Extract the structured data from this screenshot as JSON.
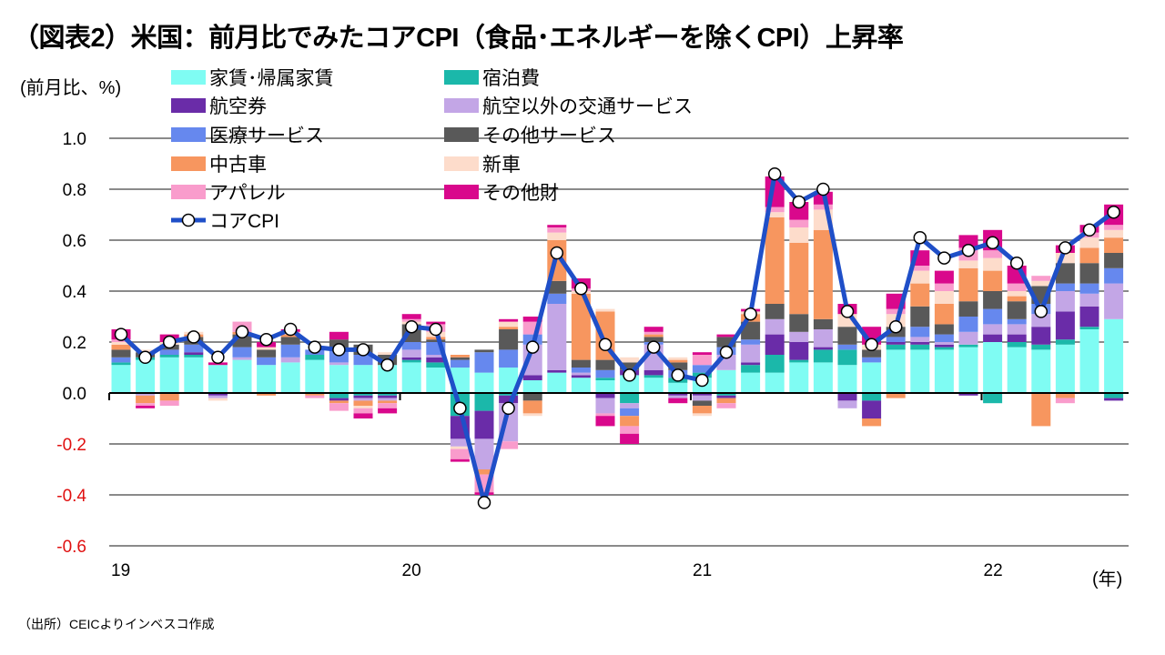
{
  "title": "（図表2）米国：前月比でみたコアCPI（食品･エネルギーを除くCPI）上昇率",
  "source": "（出所）CEICよりインベスコ作成",
  "chart_data": {
    "type": "bar",
    "stacked": true,
    "title": "（図表2）米国：前月比でみたコアCPI（食品･エネルギーを除くCPI）上昇率",
    "ylabel": "(前月比、%)",
    "xlabel": "(年)",
    "ylim": [
      -0.6,
      1.0
    ],
    "yticks": [
      "1.0",
      "0.8",
      "0.6",
      "0.4",
      "0.2",
      "0.0",
      "-0.2",
      "-0.4",
      "-0.6"
    ],
    "ytick_values": [
      1.0,
      0.8,
      0.6,
      0.4,
      0.2,
      0.0,
      -0.2,
      -0.4,
      -0.6
    ],
    "negative_tick_color": "#e01010",
    "grid": true,
    "legend_position": "top-left",
    "xtick_labels": [
      "19",
      "20",
      "21",
      "22"
    ],
    "x_start": "2019-01",
    "x": [
      "2019-01",
      "2019-02",
      "2019-03",
      "2019-04",
      "2019-05",
      "2019-06",
      "2019-07",
      "2019-08",
      "2019-09",
      "2019-10",
      "2019-11",
      "2019-12",
      "2020-01",
      "2020-02",
      "2020-03",
      "2020-04",
      "2020-05",
      "2020-06",
      "2020-07",
      "2020-08",
      "2020-09",
      "2020-10",
      "2020-11",
      "2020-12",
      "2021-01",
      "2021-02",
      "2021-03",
      "2021-04",
      "2021-05",
      "2021-06",
      "2021-07",
      "2021-08",
      "2021-09",
      "2021-10",
      "2021-11",
      "2021-12",
      "2022-01",
      "2022-02",
      "2022-03",
      "2022-04",
      "2022-05",
      "2022-06"
    ],
    "series": [
      {
        "name": "家賃･帰属家賃",
        "color": "#7ffcf3",
        "values": [
          0.11,
          0.13,
          0.14,
          0.14,
          0.11,
          0.13,
          0.11,
          0.12,
          0.13,
          0.11,
          0.11,
          0.11,
          0.12,
          0.1,
          0.1,
          0.08,
          0.1,
          0.05,
          0.08,
          0.06,
          0.05,
          0.07,
          0.06,
          0.04,
          0.06,
          0.09,
          0.08,
          0.08,
          0.12,
          0.12,
          0.11,
          0.12,
          0.17,
          0.17,
          0.17,
          0.18,
          0.2,
          0.18,
          0.17,
          0.19,
          0.25,
          0.29
        ]
      },
      {
        "name": "宿泊費",
        "color": "#1bb8aa",
        "values": [
          0.01,
          0.01,
          0.01,
          0.01,
          0.0,
          0.0,
          0.0,
          0.0,
          0.02,
          -0.02,
          -0.01,
          -0.01,
          0.01,
          0.02,
          -0.09,
          -0.07,
          -0.01,
          0.0,
          0.0,
          0.0,
          0.01,
          -0.04,
          0.01,
          0.02,
          0.02,
          -0.01,
          0.03,
          0.07,
          0.01,
          0.05,
          0.06,
          -0.03,
          0.02,
          0.02,
          0.01,
          0.01,
          -0.04,
          0.02,
          0.02,
          0.02,
          0.01,
          -0.02
        ]
      },
      {
        "name": "航空券",
        "color": "#6a2ca8",
        "values": [
          0.0,
          0.0,
          0.0,
          0.01,
          -0.01,
          0.0,
          0.0,
          0.0,
          0.0,
          -0.01,
          -0.01,
          -0.01,
          0.01,
          0.02,
          -0.09,
          -0.11,
          -0.03,
          0.02,
          0.01,
          0.01,
          -0.02,
          0.02,
          0.02,
          -0.01,
          -0.01,
          -0.01,
          0.01,
          0.08,
          0.07,
          0.01,
          -0.03,
          -0.07,
          0.01,
          0.01,
          0.01,
          -0.01,
          0.03,
          0.03,
          0.07,
          0.11,
          0.08,
          -0.01
        ]
      },
      {
        "name": "航空以外の交通サービス",
        "color": "#c3a6e6",
        "values": [
          0.0,
          -0.01,
          0.0,
          0.0,
          -0.01,
          0.01,
          0.0,
          0.02,
          0.0,
          0.01,
          -0.01,
          -0.01,
          0.03,
          0.01,
          -0.03,
          -0.12,
          -0.15,
          0.12,
          0.26,
          0.01,
          -0.06,
          -0.02,
          0.1,
          -0.01,
          -0.02,
          0.06,
          0.07,
          0.06,
          0.04,
          0.07,
          -0.03,
          0.0,
          0.0,
          0.02,
          0.01,
          0.05,
          0.04,
          0.04,
          0.05,
          0.08,
          0.05,
          0.14
        ]
      },
      {
        "name": "医療サービス",
        "color": "#6688ee",
        "values": [
          0.02,
          0.0,
          0.02,
          0.03,
          0.0,
          0.04,
          0.03,
          0.05,
          0.02,
          0.05,
          0.04,
          0.0,
          0.03,
          0.05,
          0.03,
          0.08,
          0.07,
          0.04,
          0.04,
          0.02,
          0.03,
          -0.03,
          0.01,
          0.03,
          0.03,
          0.03,
          0.02,
          0.0,
          0.0,
          0.0,
          0.02,
          0.02,
          0.02,
          0.04,
          0.03,
          0.06,
          0.06,
          0.02,
          0.04,
          0.03,
          0.04,
          0.06
        ]
      },
      {
        "name": "その他サービス",
        "color": "#595959",
        "values": [
          0.03,
          0.02,
          0.02,
          0.03,
          0.0,
          0.05,
          0.03,
          0.03,
          0.0,
          0.04,
          0.04,
          0.04,
          0.07,
          0.01,
          0.01,
          0.01,
          0.08,
          -0.03,
          0.05,
          0.03,
          0.04,
          0.03,
          0.02,
          0.03,
          -0.02,
          0.04,
          0.07,
          0.06,
          0.07,
          0.04,
          0.07,
          0.03,
          0.04,
          0.08,
          0.04,
          0.06,
          0.07,
          0.07,
          0.07,
          0.08,
          0.08,
          0.06
        ]
      },
      {
        "name": "中古車",
        "color": "#f7965f",
        "values": [
          0.02,
          -0.03,
          -0.03,
          0.01,
          0.0,
          0.01,
          -0.01,
          0.01,
          -0.01,
          -0.01,
          -0.02,
          -0.01,
          0.0,
          0.01,
          0.01,
          -0.02,
          0.01,
          -0.05,
          0.16,
          0.26,
          0.19,
          -0.04,
          0.01,
          0.01,
          -0.03,
          -0.02,
          0.03,
          0.34,
          0.28,
          0.35,
          0.0,
          -0.03,
          -0.02,
          0.09,
          0.08,
          0.13,
          0.08,
          0.02,
          -0.13,
          -0.02,
          0.06,
          0.06
        ]
      },
      {
        "name": "新車",
        "color": "#fddccb",
        "values": [
          0.01,
          0.01,
          0.01,
          0.01,
          -0.01,
          0.0,
          0.01,
          0.01,
          0.0,
          0.0,
          -0.01,
          0.01,
          0.01,
          0.02,
          -0.01,
          0.0,
          0.02,
          -0.01,
          0.03,
          0.01,
          0.01,
          0.02,
          0.0,
          0.01,
          -0.01,
          0.0,
          0.01,
          0.02,
          0.06,
          0.08,
          0.05,
          0.02,
          0.05,
          0.05,
          0.05,
          0.03,
          0.05,
          0.02,
          0.02,
          0.04,
          0.04,
          0.03
        ]
      },
      {
        "name": "アパレル",
        "color": "#f99ccc",
        "values": [
          0.01,
          -0.01,
          -0.02,
          0.0,
          0.0,
          0.04,
          0.0,
          0.0,
          -0.01,
          -0.03,
          -0.02,
          -0.02,
          0.01,
          0.03,
          -0.04,
          -0.07,
          -0.03,
          0.05,
          0.02,
          0.01,
          -0.01,
          -0.03,
          0.01,
          0.0,
          0.04,
          -0.02,
          0.0,
          0.02,
          0.03,
          0.02,
          0.0,
          0.0,
          0.02,
          0.02,
          0.03,
          0.05,
          0.03,
          0.03,
          0.02,
          -0.02,
          0.02,
          0.02
        ]
      },
      {
        "name": "その他財",
        "color": "#d9088c",
        "values": [
          0.04,
          -0.01,
          0.03,
          0.0,
          0.01,
          0.0,
          0.02,
          0.01,
          0.0,
          0.03,
          -0.02,
          -0.02,
          0.02,
          0.01,
          -0.01,
          -0.01,
          0.01,
          0.02,
          0.01,
          0.04,
          -0.04,
          -0.04,
          0.02,
          -0.02,
          0.01,
          0.01,
          0.01,
          0.12,
          0.07,
          0.05,
          0.04,
          0.07,
          0.06,
          0.06,
          0.05,
          0.05,
          0.08,
          0.07,
          0.0,
          0.03,
          0.03,
          0.08
        ]
      }
    ],
    "line": {
      "name": "コアCPI",
      "color": "#1f4fc8",
      "values": [
        0.23,
        0.14,
        0.2,
        0.22,
        0.14,
        0.24,
        0.21,
        0.25,
        0.18,
        0.17,
        0.17,
        0.11,
        0.26,
        0.25,
        -0.06,
        -0.43,
        -0.06,
        0.18,
        0.55,
        0.41,
        0.19,
        0.07,
        0.18,
        0.07,
        0.05,
        0.16,
        0.31,
        0.86,
        0.75,
        0.8,
        0.32,
        0.19,
        0.26,
        0.61,
        0.53,
        0.56,
        0.59,
        0.51,
        0.32,
        0.57,
        0.64,
        0.71
      ]
    }
  }
}
